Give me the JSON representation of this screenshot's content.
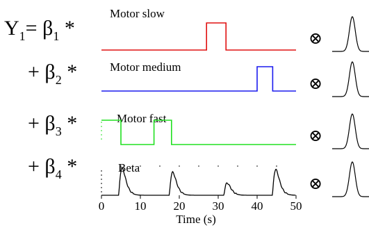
{
  "equation": {
    "lhs": "Y",
    "lhs_sub": "1",
    "rows": [
      {
        "prefix": "",
        "operator": "= ",
        "beta": "β",
        "beta_sub": "1",
        "times": " *"
      },
      {
        "prefix": "+ ",
        "operator": "",
        "beta": "β",
        "beta_sub": "2",
        "times": " *"
      },
      {
        "prefix": "+ ",
        "operator": "",
        "beta": "β",
        "beta_sub": "3",
        "times": " *"
      },
      {
        "prefix": "+ ",
        "operator": "",
        "beta": "β",
        "beta_sub": "4",
        "times": " *"
      }
    ],
    "convolution_symbol": "⊗"
  },
  "regressors": [
    {
      "label": "Motor slow",
      "color": "#e01010",
      "type": "boxcar",
      "blocks": [
        [
          27,
          32
        ]
      ]
    },
    {
      "label": "Motor medium",
      "color": "#1a1aee",
      "type": "boxcar",
      "blocks": [
        [
          40,
          44
        ]
      ]
    },
    {
      "label": "Motor fast",
      "color": "#20e020",
      "type": "boxcar",
      "blocks": [
        [
          0,
          5
        ],
        [
          13.5,
          18
        ]
      ]
    },
    {
      "label": "Beta",
      "color": "#000000",
      "type": "continuous",
      "peaks": [
        5,
        18,
        32,
        44.5
      ]
    }
  ],
  "time_axis": {
    "label": "Time (s)",
    "min": 0,
    "max": 50,
    "ticks": [
      0,
      10,
      20,
      30,
      40,
      50
    ]
  },
  "hrf": {
    "icon": "hrf-curve-icon",
    "count": 4
  }
}
